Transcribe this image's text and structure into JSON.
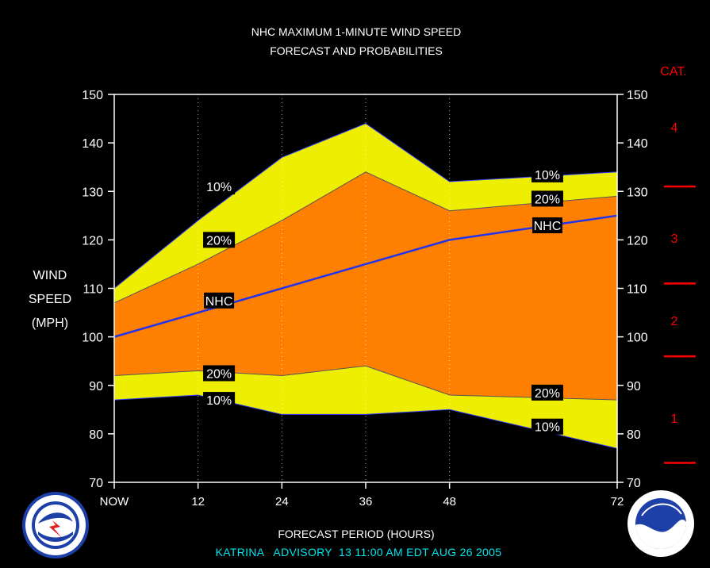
{
  "title_line1": "NHC MAXIMUM 1-MINUTE WIND SPEED",
  "title_line2": "FORECAST AND PROBABILITIES",
  "ylabel_lines": [
    "WIND",
    "SPEED",
    "(MPH)"
  ],
  "xlabel": "FORECAST PERIOD (HOURS)",
  "footer": "KATRINA   ADVISORY  13 11:00 AM EDT AUG 26 2005",
  "category_header": "CAT.",
  "categories": [
    {
      "label": "1",
      "y": 83
    },
    {
      "label": "2",
      "y": 103
    },
    {
      "label": "3",
      "y": 120
    },
    {
      "label": "4",
      "y": 143
    }
  ],
  "category_boundaries": [
    74,
    96,
    111,
    131
  ],
  "colors": {
    "background": "#000000",
    "band_10_90": "#eeee00",
    "band_20_80": "#ff7f00",
    "nhc_line": "#2233ee",
    "category": "#ff0000",
    "footer": "#00e5ee"
  },
  "logos": {
    "left": "nws-logo",
    "right": "noaa-logo"
  },
  "chart_data": {
    "type": "area",
    "x": [
      0,
      12,
      24,
      36,
      48,
      72
    ],
    "x_tick_labels": [
      "NOW",
      "12",
      "24",
      "36",
      "48",
      "72"
    ],
    "xlim": [
      0,
      72
    ],
    "ylim": [
      70,
      150
    ],
    "y_ticks": [
      70,
      80,
      90,
      100,
      110,
      120,
      130,
      140,
      150
    ],
    "grid_vertical": true,
    "series": [
      {
        "name": "10%",
        "values": [
          110,
          124,
          137,
          144,
          132,
          134
        ]
      },
      {
        "name": "20%",
        "values": [
          107,
          115,
          124,
          134,
          126,
          129
        ]
      },
      {
        "name": "NHC",
        "values": [
          100,
          105,
          110,
          115,
          120,
          125
        ]
      },
      {
        "name": "20%",
        "values": [
          92,
          93,
          92,
          94,
          88,
          87
        ]
      },
      {
        "name": "10%",
        "values": [
          87,
          88,
          84,
          84,
          85,
          77
        ]
      }
    ],
    "series_labels": [
      {
        "text": "10%",
        "x": 15,
        "y": 131
      },
      {
        "text": "20%",
        "x": 15,
        "y": 120
      },
      {
        "text": "NHC",
        "x": 15,
        "y": 107.5
      },
      {
        "text": "20%",
        "x": 15,
        "y": 92.5
      },
      {
        "text": "10%",
        "x": 15,
        "y": 87
      },
      {
        "text": "10%",
        "x": 62,
        "y": 133.5
      },
      {
        "text": "20%",
        "x": 62,
        "y": 128.5
      },
      {
        "text": "NHC",
        "x": 62,
        "y": 123
      },
      {
        "text": "20%",
        "x": 62,
        "y": 88.5
      },
      {
        "text": "10%",
        "x": 62,
        "y": 81.5
      }
    ]
  }
}
